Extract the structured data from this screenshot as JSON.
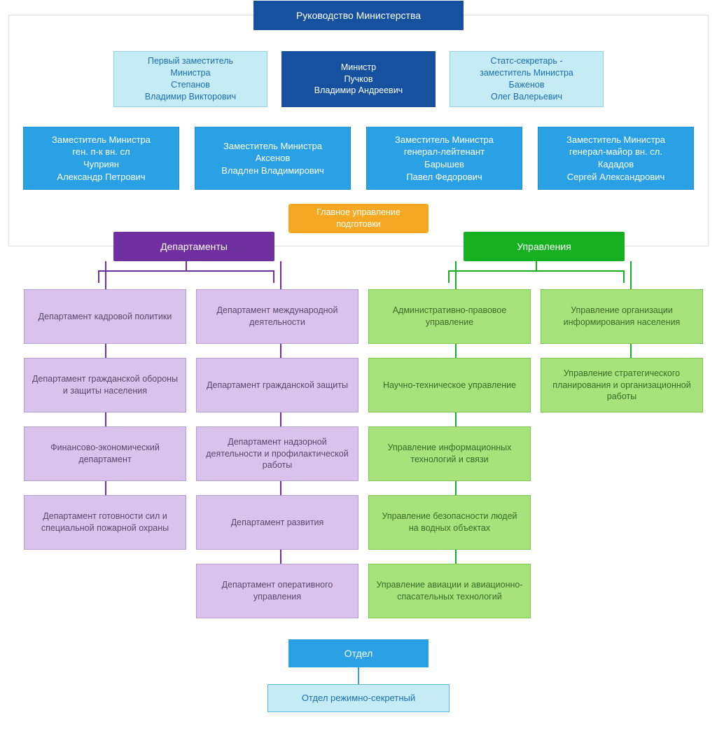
{
  "colors": {
    "header_bg": "#1651a0",
    "light_bg": "#c5ebf5",
    "light_border": "#8fd4e8",
    "dark_bg": "#1651a0",
    "deputy_bg": "#2aa0e5",
    "deputy_border": "#1d8fd4",
    "orange_bg": "#f7a823",
    "purple_bg": "#7030a0",
    "green_bg": "#16b020",
    "pcell_bg": "#d9c3ec",
    "pcell_border": "#b89cd6",
    "gcell_bg": "#a8e27a",
    "gcell_border": "#7cc84e",
    "bottom_cell_bg": "#c5ebf5",
    "bottom_cell_border": "#5bb8d8",
    "frame_border": "#e0e0e0"
  },
  "header": "Руководство Министерства",
  "top_row": [
    {
      "style": "light",
      "lines": [
        "Первый заместитель",
        "Министра",
        "Степанов",
        "Владимир Викторович"
      ]
    },
    {
      "style": "dark",
      "lines": [
        "Министр",
        "Пучков",
        "Владимир Андреевич"
      ]
    },
    {
      "style": "light",
      "lines": [
        "Статс-секретарь -",
        "заместитель Министра",
        "Баженов",
        "Олег Валерьевич"
      ]
    }
  ],
  "dep_row": [
    {
      "lines": [
        "Заместитель Министра",
        "ген. п-к вн. сл",
        "Чуприян",
        "Александр Петрович"
      ]
    },
    {
      "lines": [
        "Заместитель Министра",
        "Аксенов",
        "Владлен Владимирович"
      ]
    },
    {
      "lines": [
        "Заместитель Министра",
        "генерал-лейтенант",
        "Барышев",
        "Павел Федорович"
      ]
    },
    {
      "lines": [
        "Заместитель Министра",
        "генерал-майор вн. сл.",
        "Кададов",
        "Сергей Александрович"
      ]
    }
  ],
  "mid_badge": [
    "Главное управление",
    "подготовки"
  ],
  "sections": {
    "departments": {
      "title": "Департаменты",
      "col1": [
        "Департамент кадровой политики",
        "Департамент гражданской обороны и защиты населения",
        "Финансово-экономический департамент",
        "Департамент готовности сил и специальной пожарной охраны"
      ],
      "col2": [
        "Департамент международной деятельности",
        "Департамент гражданской защиты",
        "Департамент надзорной деятельности и профилактической работы",
        "Департамент развития",
        "Департамент оперативного управления"
      ]
    },
    "directorates": {
      "title": "Управления",
      "col1": [
        "Административно-правовое управление",
        "Научно-техническое управление",
        "Управление информационных технологий и связи",
        "Управление безопасности людей на водных объектах",
        "Управление авиации и авиационно-спасательных технологий"
      ],
      "col2": [
        "Управление организации информирования населения",
        "Управление стратегического планирования и организационной работы"
      ]
    }
  },
  "bottom": {
    "title": "Отдел",
    "child": "Отдел режимно-секретный"
  }
}
